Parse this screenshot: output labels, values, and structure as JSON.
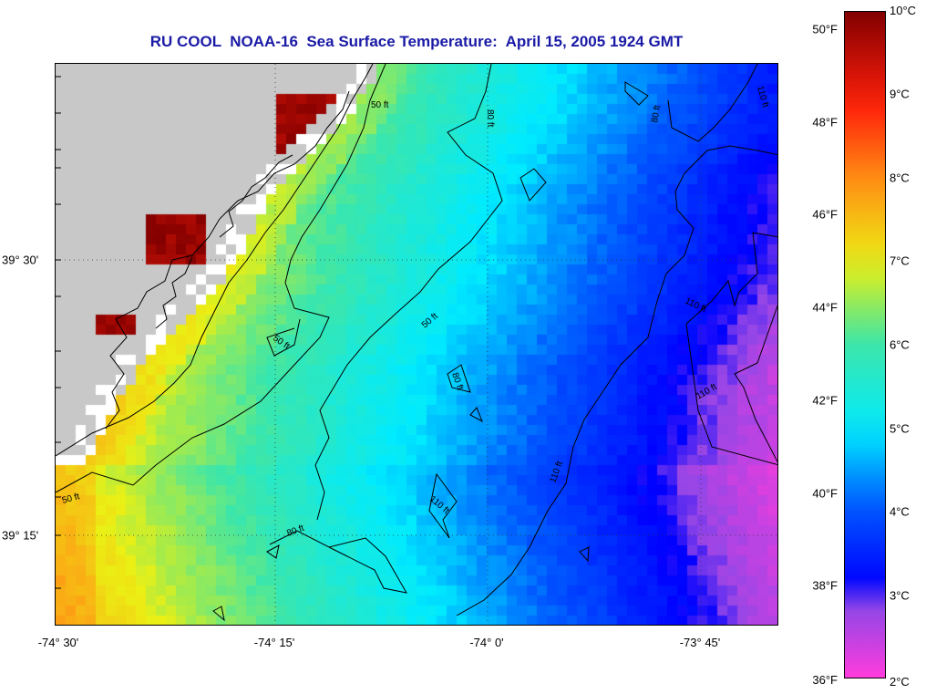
{
  "title": "RU COOL  NOAA-16  Sea Surface Temperature:  April 15, 2005 1924 GMT",
  "map": {
    "longitude_labels": [
      "-74° 30'",
      "-74° 15'",
      "-74° 0'",
      "-73° 45'"
    ],
    "latitude_labels": [
      "39° 30'",
      "39° 15'"
    ],
    "contour_labels": {
      "c50_a": "50 ft",
      "c50_b": "50 ft",
      "c50_c": "50 ft",
      "c50_d": "50 ft",
      "c80_a": "80 ft",
      "c80_b": "80 ft",
      "c80_c": "80 ft",
      "c80_d": "80 ft",
      "c110_a": "110 ft",
      "c110_b": "110 ft",
      "c110_c": "110 ft",
      "c110_d": "110 ft",
      "c110_e": "110 ft"
    },
    "colors": {
      "land": "#c8c8c8",
      "no_data": "#ffffff",
      "contour": "#000000"
    }
  },
  "colorbar": {
    "fahrenheit_labels": [
      "50°F",
      "48°F",
      "46°F",
      "44°F",
      "42°F",
      "40°F",
      "38°F",
      "36°F"
    ],
    "celsius_labels": [
      "10°C",
      "9°C",
      "8°C",
      "7°C",
      "6°C",
      "5°C",
      "4°C",
      "3°C",
      "2°C"
    ],
    "range_c": [
      2,
      10
    ]
  }
}
